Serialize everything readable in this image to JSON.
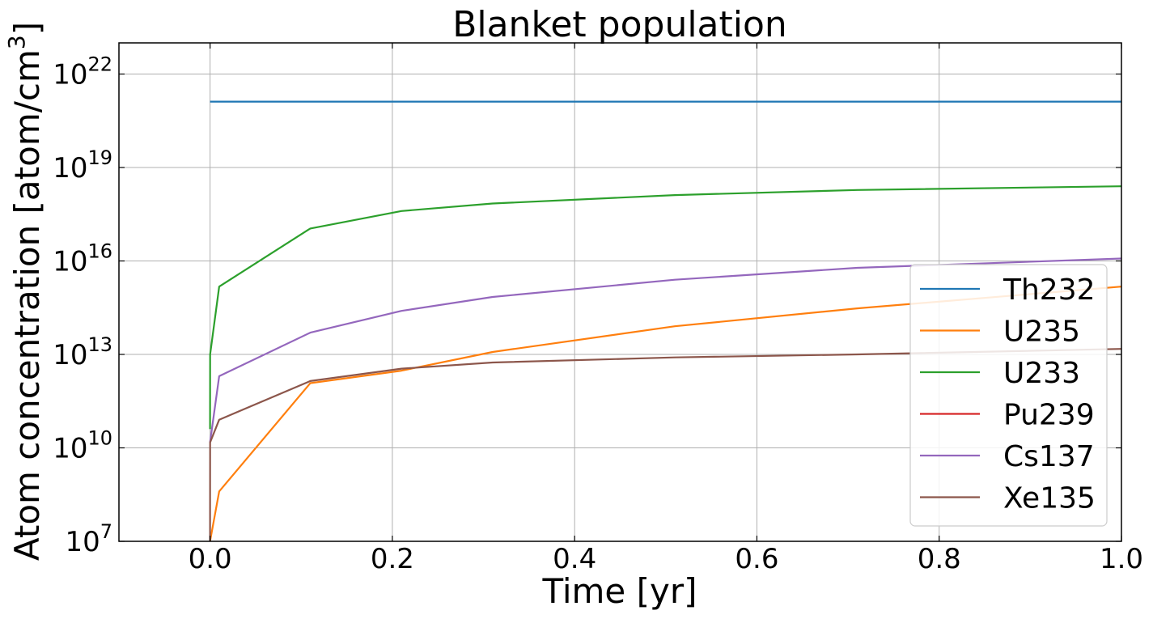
{
  "chart_data": {
    "type": "line",
    "title": "Blanket population",
    "xlabel": "Time [yr]",
    "ylabel": "Atom concentration [atom/cm",
    "ylabel_sup": "3",
    "ylabel_close": "]",
    "xlim": [
      -0.1,
      1.0
    ],
    "ylim": [
      10000000.0,
      1e+23
    ],
    "yscale": "log",
    "grid": true,
    "legend_position": "right",
    "xticks": [
      {
        "v": 0.0,
        "label": "0.0"
      },
      {
        "v": 0.2,
        "label": "0.2"
      },
      {
        "v": 0.4,
        "label": "0.4"
      },
      {
        "v": 0.6,
        "label": "0.6"
      },
      {
        "v": 0.8,
        "label": "0.8"
      },
      {
        "v": 1.0,
        "label": "1.0"
      }
    ],
    "yticks": [
      {
        "v": 10000000.0,
        "base": "10",
        "exp": "7"
      },
      {
        "v": 10000000000.0,
        "base": "10",
        "exp": "10"
      },
      {
        "v": 10000000000000.0,
        "base": "10",
        "exp": "13"
      },
      {
        "v": 1e+16,
        "base": "10",
        "exp": "16"
      },
      {
        "v": 1e+19,
        "base": "10",
        "exp": "19"
      },
      {
        "v": 1e+22,
        "base": "10",
        "exp": "22"
      }
    ],
    "series": [
      {
        "name": "Th232",
        "color": "#1f77b4",
        "x": [
          0.0,
          1.0
        ],
        "y": [
          1.3e+21,
          1.3e+21
        ]
      },
      {
        "name": "U235",
        "color": "#ff7f0e",
        "x": [
          0.0,
          0.01,
          0.11,
          0.21,
          0.31,
          0.51,
          0.71,
          1.0
        ],
        "y": [
          10000000.0,
          400000000.0,
          1200000000000.0,
          3000000000000.0,
          12000000000000.0,
          80000000000000.0,
          300000000000000.0,
          1500000000000000.0
        ]
      },
      {
        "name": "U233",
        "color": "#2ca02c",
        "x": [
          0.0,
          0.0001,
          0.01,
          0.11,
          0.21,
          0.31,
          0.51,
          0.71,
          1.0
        ],
        "y": [
          40000000000.0,
          10000000000000.0,
          1500000000000000.0,
          1.1e+17,
          4e+17,
          7e+17,
          1.3e+18,
          1.9e+18,
          2.5e+18
        ]
      },
      {
        "name": "Pu239",
        "color": "#d62728",
        "x": [],
        "y": []
      },
      {
        "name": "Cs137",
        "color": "#9467bd",
        "x": [
          0.0,
          0.01,
          0.11,
          0.21,
          0.31,
          0.51,
          0.71,
          1.0
        ],
        "y": [
          15000000000.0,
          2000000000000.0,
          50000000000000.0,
          250000000000000.0,
          700000000000000.0,
          2500000000000000.0,
          6000000000000000.0,
          1.2e+16
        ]
      },
      {
        "name": "Xe135",
        "color": "#8c564b",
        "x": [
          0.0,
          0.0001,
          0.01,
          0.11,
          0.21,
          0.31,
          0.51,
          0.71,
          1.0
        ],
        "y": [
          10000000.0,
          15000000000.0,
          80000000000.0,
          1400000000000.0,
          3500000000000.0,
          5500000000000.0,
          8000000000000.0,
          10000000000000.0,
          15000000000000.0
        ]
      }
    ]
  }
}
